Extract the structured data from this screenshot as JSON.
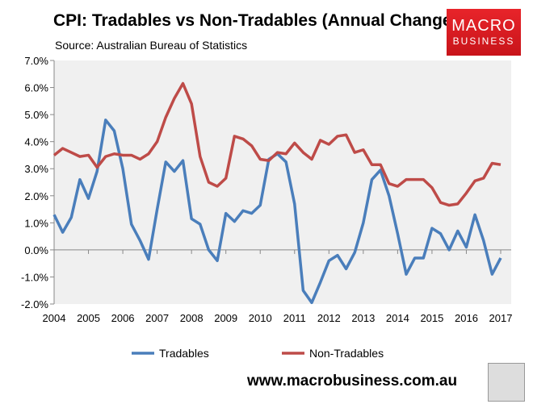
{
  "header": {
    "title": "CPI: Tradables vs Non-Tradables (Annual Change)",
    "subtitle": "Source: Australian Bureau of Statistics"
  },
  "logo": {
    "line1": "MACRO",
    "line2": "BUSINESS"
  },
  "footer": {
    "url": "www.macrobusiness.com.au"
  },
  "chart_data": {
    "type": "line",
    "title": "CPI: Tradables vs Non-Tradables (Annual Change)",
    "subtitle": "Source: Australian Bureau of Statistics",
    "x_start": 2004,
    "x_step": 0.25,
    "xticks": [
      "2004",
      "2005",
      "2006",
      "2007",
      "2008",
      "2009",
      "2010",
      "2011",
      "2012",
      "2013",
      "2014",
      "2015",
      "2016",
      "2017"
    ],
    "yticks": [
      "-2.0%",
      "-1.0%",
      "0.0%",
      "1.0%",
      "2.0%",
      "3.0%",
      "4.0%",
      "5.0%",
      "6.0%",
      "7.0%"
    ],
    "ylim": [
      -2,
      7
    ],
    "xlim": [
      2004,
      2017
    ],
    "grid": false,
    "legend": "bottom",
    "series": [
      {
        "name": "Tradables",
        "color": "#4a7ebb",
        "values": [
          1.3,
          0.65,
          1.2,
          2.6,
          1.9,
          2.9,
          4.8,
          4.4,
          3.0,
          0.95,
          0.35,
          -0.35,
          1.5,
          3.25,
          2.9,
          3.3,
          1.15,
          0.95,
          0.0,
          -0.4,
          1.35,
          1.05,
          1.45,
          1.35,
          1.65,
          3.35,
          3.55,
          3.25,
          1.7,
          -1.5,
          -1.95,
          -1.2,
          -0.4,
          -0.2,
          -0.7,
          -0.1,
          1.0,
          2.6,
          2.95,
          2.0,
          0.6,
          -0.9,
          -0.3,
          -0.3,
          0.8,
          0.6,
          0.0,
          0.7,
          0.1,
          1.3,
          0.35,
          -0.9,
          -0.3
        ]
      },
      {
        "name": "Non-Tradables",
        "color": "#be4b48",
        "values": [
          3.5,
          3.75,
          3.6,
          3.45,
          3.5,
          3.05,
          3.45,
          3.55,
          3.5,
          3.5,
          3.35,
          3.55,
          4.0,
          4.9,
          5.6,
          6.15,
          5.4,
          3.45,
          2.5,
          2.35,
          2.65,
          4.2,
          4.1,
          3.85,
          3.35,
          3.3,
          3.6,
          3.55,
          3.95,
          3.6,
          3.35,
          4.05,
          3.9,
          4.2,
          4.25,
          3.6,
          3.7,
          3.15,
          3.15,
          2.45,
          2.35,
          2.6,
          2.6,
          2.6,
          2.3,
          1.75,
          1.65,
          1.7,
          2.1,
          2.55,
          2.65,
          3.2,
          3.15
        ]
      }
    ]
  }
}
